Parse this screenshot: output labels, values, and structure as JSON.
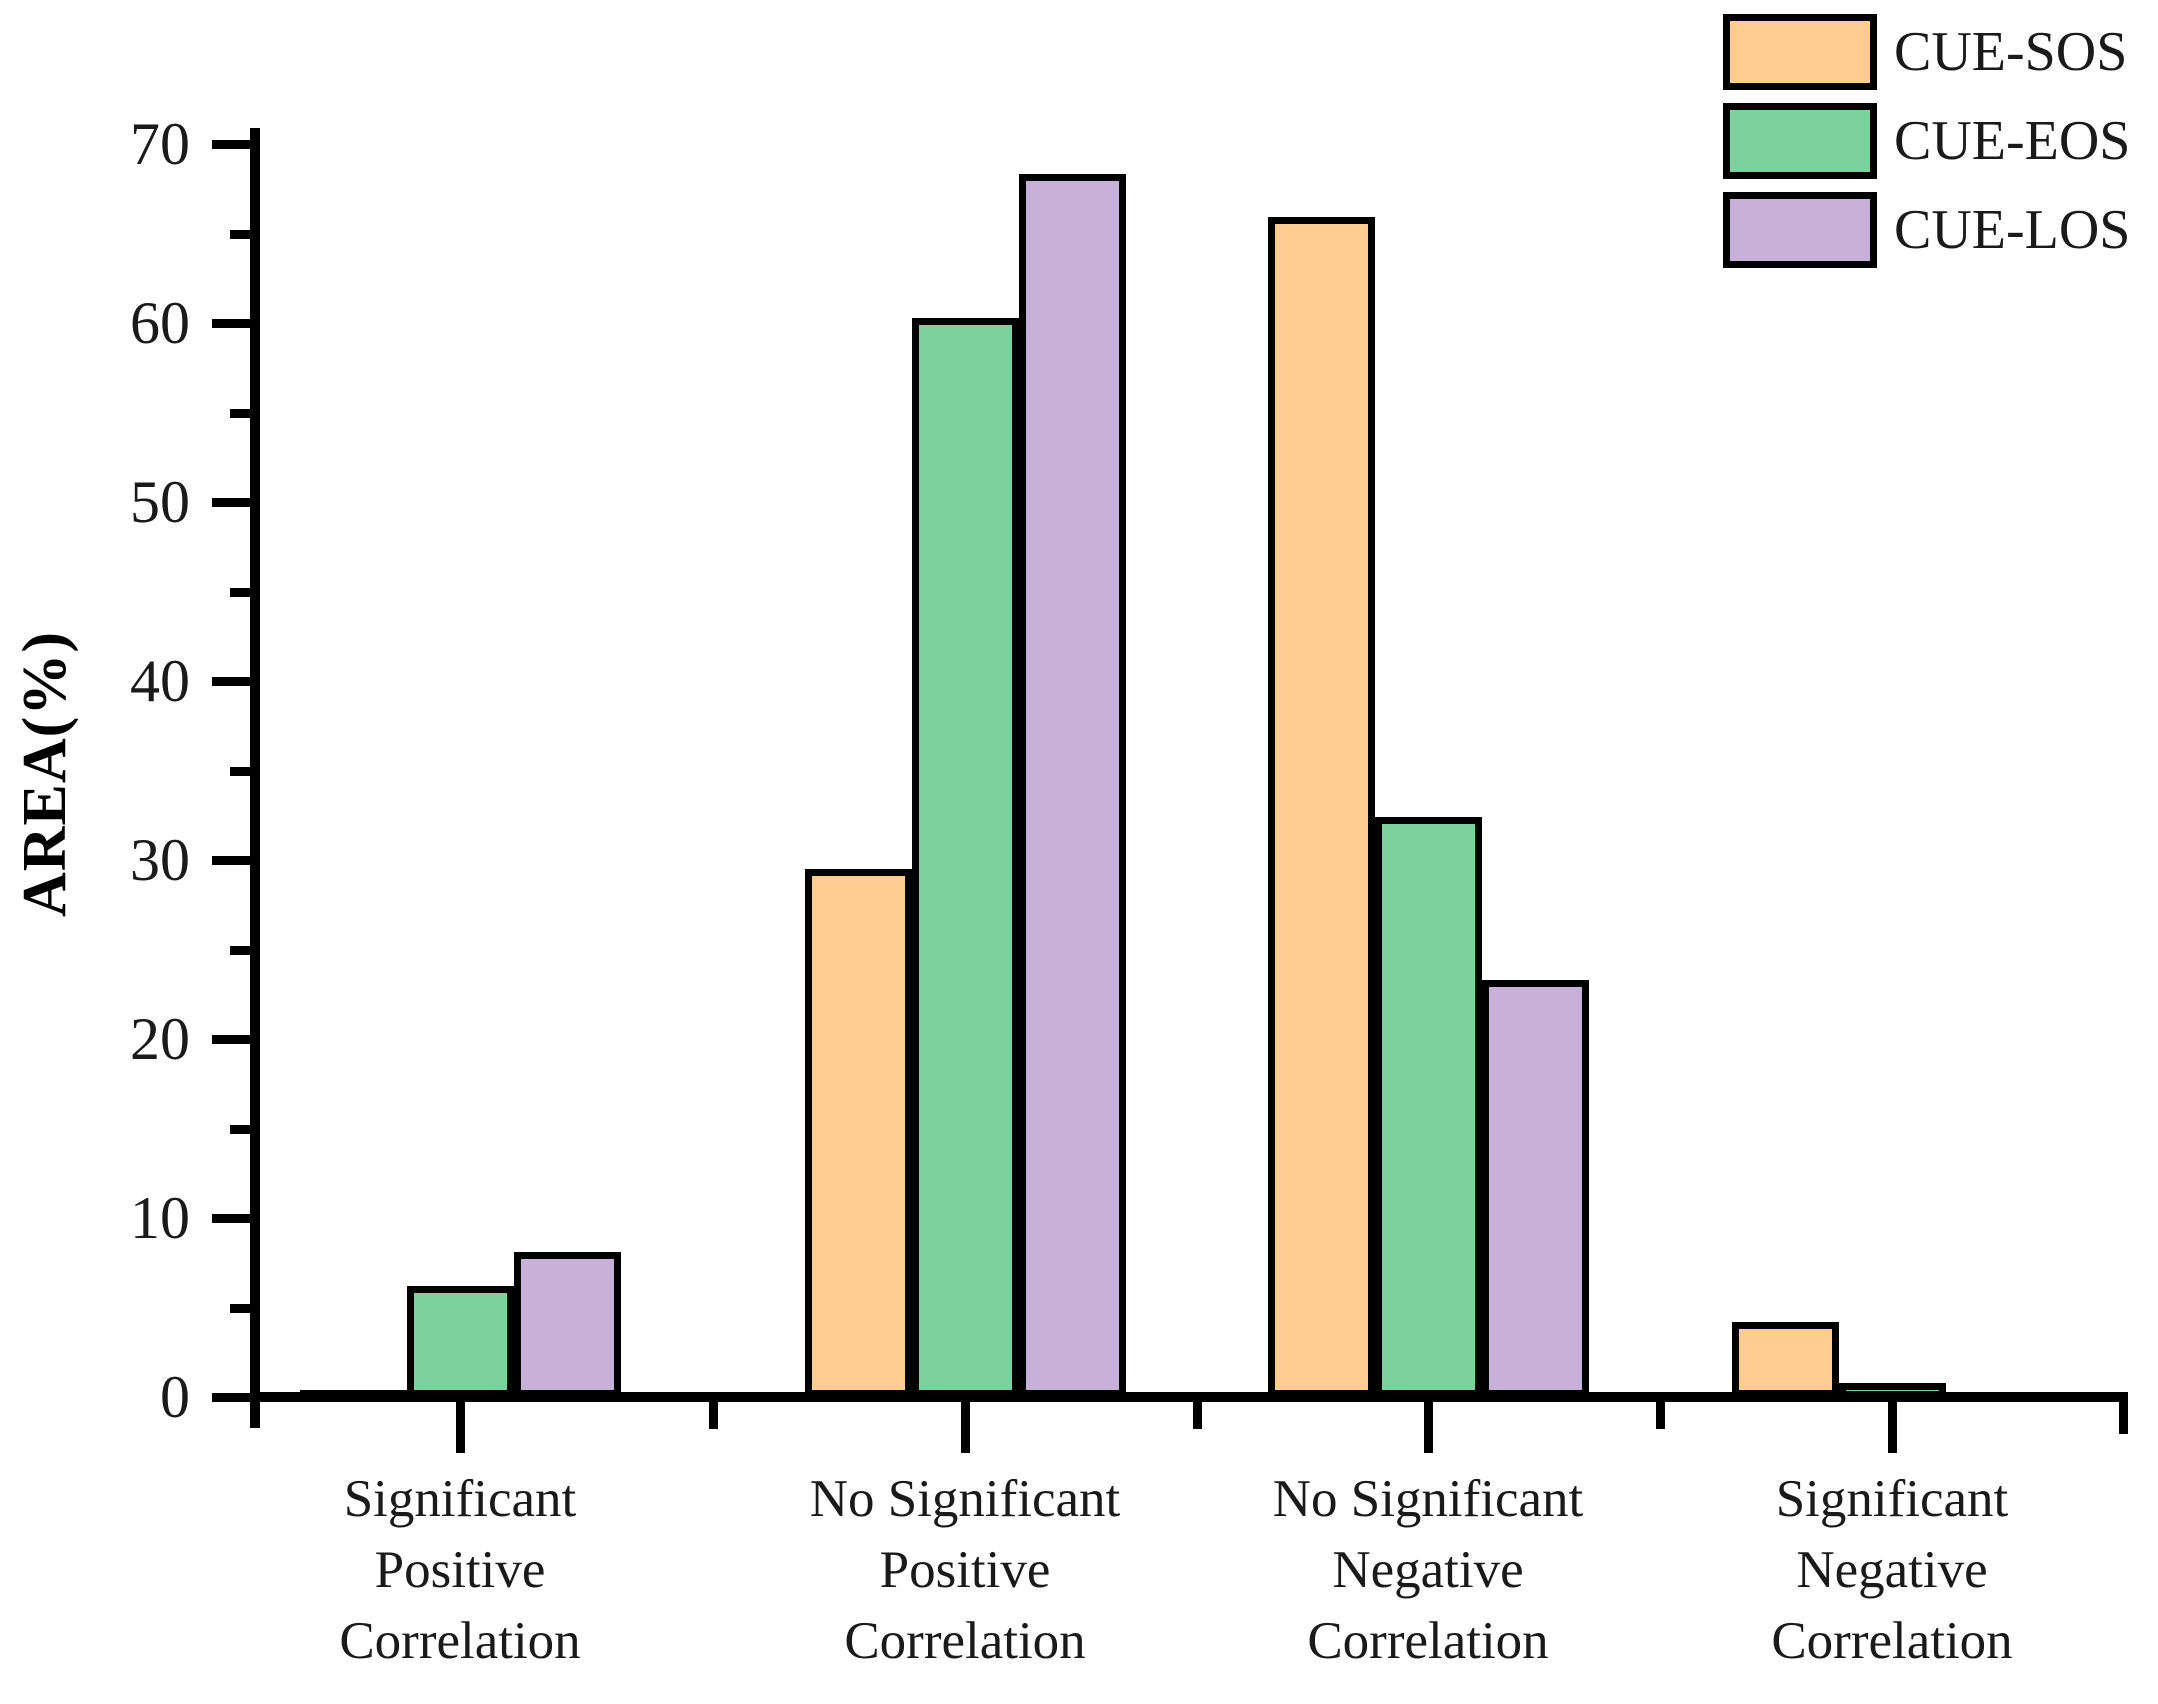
{
  "chart_data": {
    "type": "bar",
    "title": "",
    "ylabel": "AREA(%)",
    "xlabel": "",
    "ylim": [
      0,
      70
    ],
    "yticks_major": [
      0,
      10,
      20,
      30,
      40,
      50,
      60,
      70
    ],
    "yticks_minor": [
      5,
      15,
      25,
      35,
      45,
      55,
      65
    ],
    "grid": false,
    "legend_position": "top-right",
    "bar_border_color": "#000000",
    "categories": [
      [
        "Significant",
        "Positive",
        "Correlation"
      ],
      [
        "No Significant",
        "Positive",
        "Correlation"
      ],
      [
        "No Significant",
        "Negative",
        "Correlation"
      ],
      [
        "Significant",
        "Negative",
        "Correlation"
      ]
    ],
    "series": [
      {
        "name": "CUE-SOS",
        "color": "#FECC8F",
        "values": [
          0.4,
          29.5,
          65.9,
          4.2
        ]
      },
      {
        "name": "CUE-EOS",
        "color": "#7BD29A",
        "values": [
          6.2,
          60.3,
          32.4,
          0.8
        ]
      },
      {
        "name": "CUE-LOS",
        "color": "#C8B1D8",
        "values": [
          8.1,
          68.3,
          23.3,
          0.2
        ]
      }
    ]
  }
}
